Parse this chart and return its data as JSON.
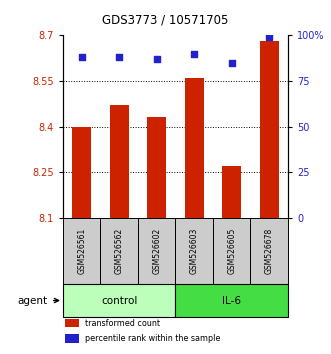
{
  "title": "GDS3773 / 10571705",
  "samples": [
    "GSM526561",
    "GSM526562",
    "GSM526602",
    "GSM526603",
    "GSM526605",
    "GSM526678"
  ],
  "bar_values": [
    8.4,
    8.47,
    8.43,
    8.56,
    8.27,
    8.68
  ],
  "percentile_values": [
    88,
    88,
    87,
    90,
    85,
    99
  ],
  "ylim_left": [
    8.1,
    8.7
  ],
  "ylim_right": [
    0,
    100
  ],
  "yticks_left": [
    8.1,
    8.25,
    8.4,
    8.55,
    8.7
  ],
  "yticks_right": [
    0,
    25,
    50,
    75,
    100
  ],
  "right_tick_labels": [
    "0",
    "25",
    "50",
    "75",
    "100%"
  ],
  "bar_color": "#cc2200",
  "dot_color": "#2222cc",
  "groups": [
    {
      "label": "control",
      "indices": [
        0,
        1,
        2
      ],
      "color": "#bbffbb"
    },
    {
      "label": "IL-6",
      "indices": [
        3,
        4,
        5
      ],
      "color": "#44dd44"
    }
  ],
  "legend_items": [
    {
      "label": "transformed count",
      "color": "#cc2200"
    },
    {
      "label": "percentile rank within the sample",
      "color": "#2222cc"
    }
  ],
  "bar_bottom": 8.1,
  "bar_width": 0.5,
  "figsize": [
    3.31,
    3.54
  ],
  "dpi": 100,
  "grid_yticks": [
    8.25,
    8.4,
    8.55
  ],
  "sample_box_color": "#cccccc",
  "left_label_color": "#cc2200",
  "right_label_color": "#2222cc"
}
